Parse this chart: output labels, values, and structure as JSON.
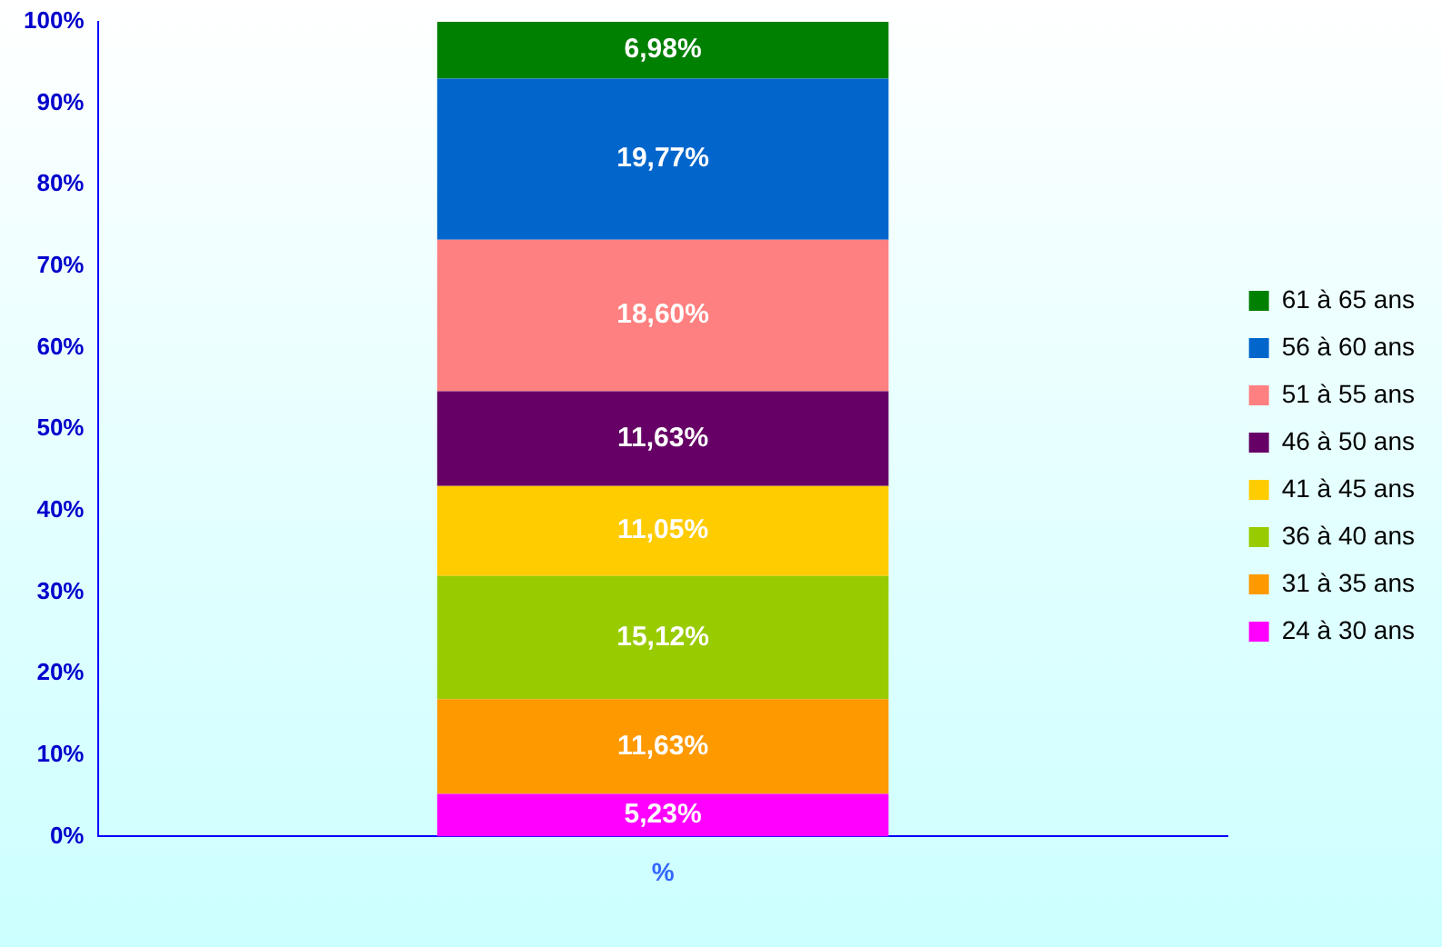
{
  "chart_data": {
    "type": "bar",
    "stacked": true,
    "categories": [
      "%"
    ],
    "ylim": [
      0,
      100
    ],
    "yticks": [
      {
        "value": 0,
        "label": "0%"
      },
      {
        "value": 10,
        "label": "10%"
      },
      {
        "value": 20,
        "label": "20%"
      },
      {
        "value": 30,
        "label": "30%"
      },
      {
        "value": 40,
        "label": "40%"
      },
      {
        "value": 50,
        "label": "50%"
      },
      {
        "value": 60,
        "label": "60%"
      },
      {
        "value": 70,
        "label": "70%"
      },
      {
        "value": 80,
        "label": "80%"
      },
      {
        "value": 90,
        "label": "90%"
      },
      {
        "value": 100,
        "label": "100%"
      }
    ],
    "grid": false,
    "legend": "right",
    "series": [
      {
        "name": "24 à 30 ans",
        "color": "#ff00ff",
        "values": [
          5.23
        ],
        "value_labels": [
          "5,23%"
        ]
      },
      {
        "name": "31 à 35 ans",
        "color": "#ff9900",
        "values": [
          11.63
        ],
        "value_labels": [
          "11,63%"
        ]
      },
      {
        "name": "36 à 40 ans",
        "color": "#99cc00",
        "values": [
          15.12
        ],
        "value_labels": [
          "15,12%"
        ]
      },
      {
        "name": "41 à 45 ans",
        "color": "#ffcc00",
        "values": [
          11.05
        ],
        "value_labels": [
          "11,05%"
        ]
      },
      {
        "name": "46 à 50 ans",
        "color": "#660066",
        "values": [
          11.63
        ],
        "value_labels": [
          "11,63%"
        ]
      },
      {
        "name": "51 à 55 ans",
        "color": "#ff8080",
        "values": [
          18.6
        ],
        "value_labels": [
          "18,60%"
        ]
      },
      {
        "name": "56 à 60 ans",
        "color": "#0066cc",
        "values": [
          19.77
        ],
        "value_labels": [
          "19,77%"
        ]
      },
      {
        "name": "61 à 65 ans",
        "color": "#008000",
        "values": [
          6.98
        ],
        "value_labels": [
          "6,98%"
        ]
      }
    ]
  }
}
